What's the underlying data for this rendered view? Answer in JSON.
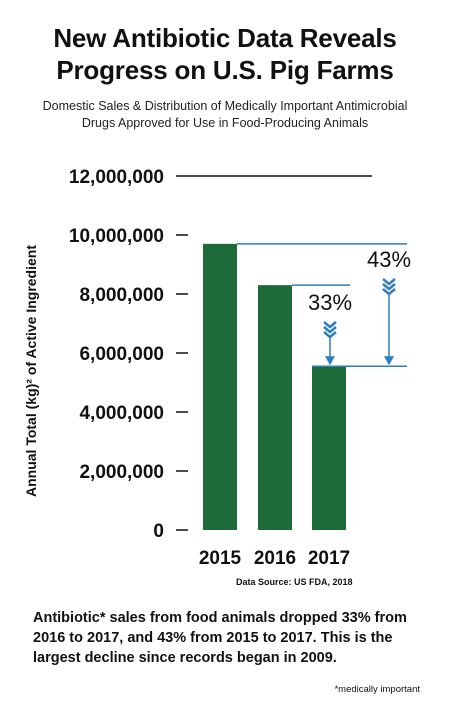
{
  "title": "New Antibiotic Data Reveals\nProgress on U.S. Pig Farms",
  "subtitle": "Domestic Sales & Distribution of Medically Important Antimicrobial\nDrugs Approved for Use in Food-Producing Animals",
  "chart_data": {
    "type": "bar",
    "categories": [
      "2015",
      "2016",
      "2017"
    ],
    "values": [
      9700000,
      8300000,
      5550000
    ],
    "ylabel": "Annual Total (kg)² of Active Ingredient",
    "ylim": [
      0,
      12000000
    ],
    "yticks": [
      "0",
      "2,000,000",
      "4,000,000",
      "6,000,000",
      "8,000,000",
      "10,000,000",
      "12,000,000"
    ],
    "ytick_values": [
      0,
      2000000,
      4000000,
      6000000,
      8000000,
      10000000,
      12000000
    ],
    "grid": false,
    "bar_color": "#1e6b3a",
    "annotation_color": "#2f7cc2",
    "annotations": [
      {
        "label": "33%",
        "from_category": "2016",
        "to_category": "2017"
      },
      {
        "label": "43%",
        "from_category": "2015",
        "to_category": "2017"
      }
    ],
    "source": "Data Source: US FDA, 2018"
  },
  "footnote": {
    "text": "Antibiotic* sales from food animals dropped 33% from 2016 to 2017, and 43% from 2015 to 2017. This is the largest decline since records began in 2009.",
    "mark": "*medically important"
  }
}
